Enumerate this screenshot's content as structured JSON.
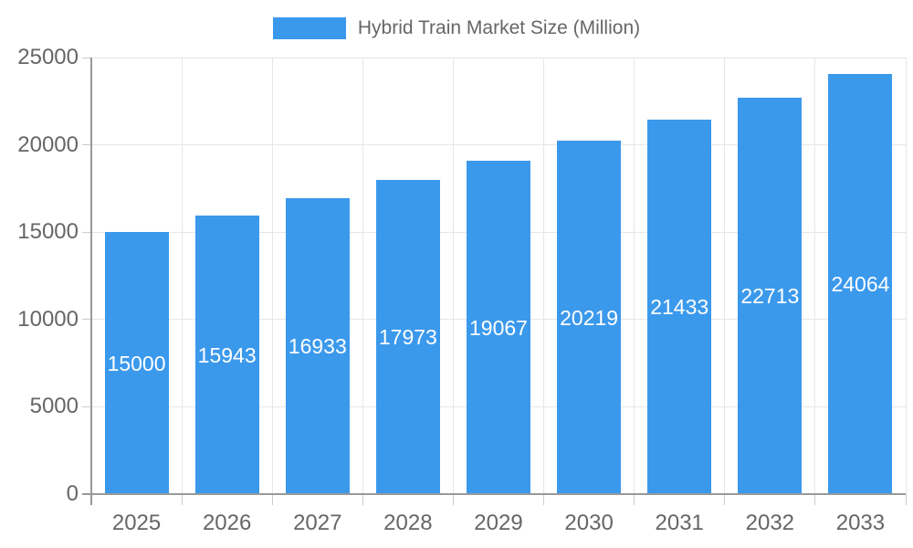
{
  "legend": {
    "label": "Hybrid Train Market Size (Million)",
    "position": "top"
  },
  "chart_data": {
    "type": "bar",
    "title": "Hybrid Train Market Size (Million)",
    "categories": [
      "2025",
      "2026",
      "2027",
      "2028",
      "2029",
      "2030",
      "2031",
      "2032",
      "2033"
    ],
    "series": [
      {
        "name": "Hybrid Train Market Size (Million)",
        "values": [
          15000,
          15943,
          16933,
          17973,
          19067,
          20219,
          21433,
          22713,
          24064
        ]
      }
    ],
    "value_labels": {
      "visible": true,
      "position": "center-of-bar",
      "values": [
        "15000",
        "15943",
        "16933",
        "17973",
        "19067",
        "20219",
        "21433",
        "22713",
        "24064"
      ]
    },
    "xlabel": "",
    "ylabel": "",
    "ylim": [
      0,
      25000
    ],
    "yticks": [
      0,
      5000,
      10000,
      15000,
      20000,
      25000
    ],
    "ytick_labels": [
      "0",
      "5000",
      "10000",
      "15000",
      "20000",
      "25000"
    ],
    "grid": true,
    "legend_position": "top",
    "colors": {
      "bar": "#3B99EC",
      "grid": "#E6E6E6",
      "axis": "#999999",
      "tick": "#CCCCCC",
      "label": "#666666",
      "value_label": "#FFFFFF",
      "background": "#FFFFFF"
    }
  }
}
